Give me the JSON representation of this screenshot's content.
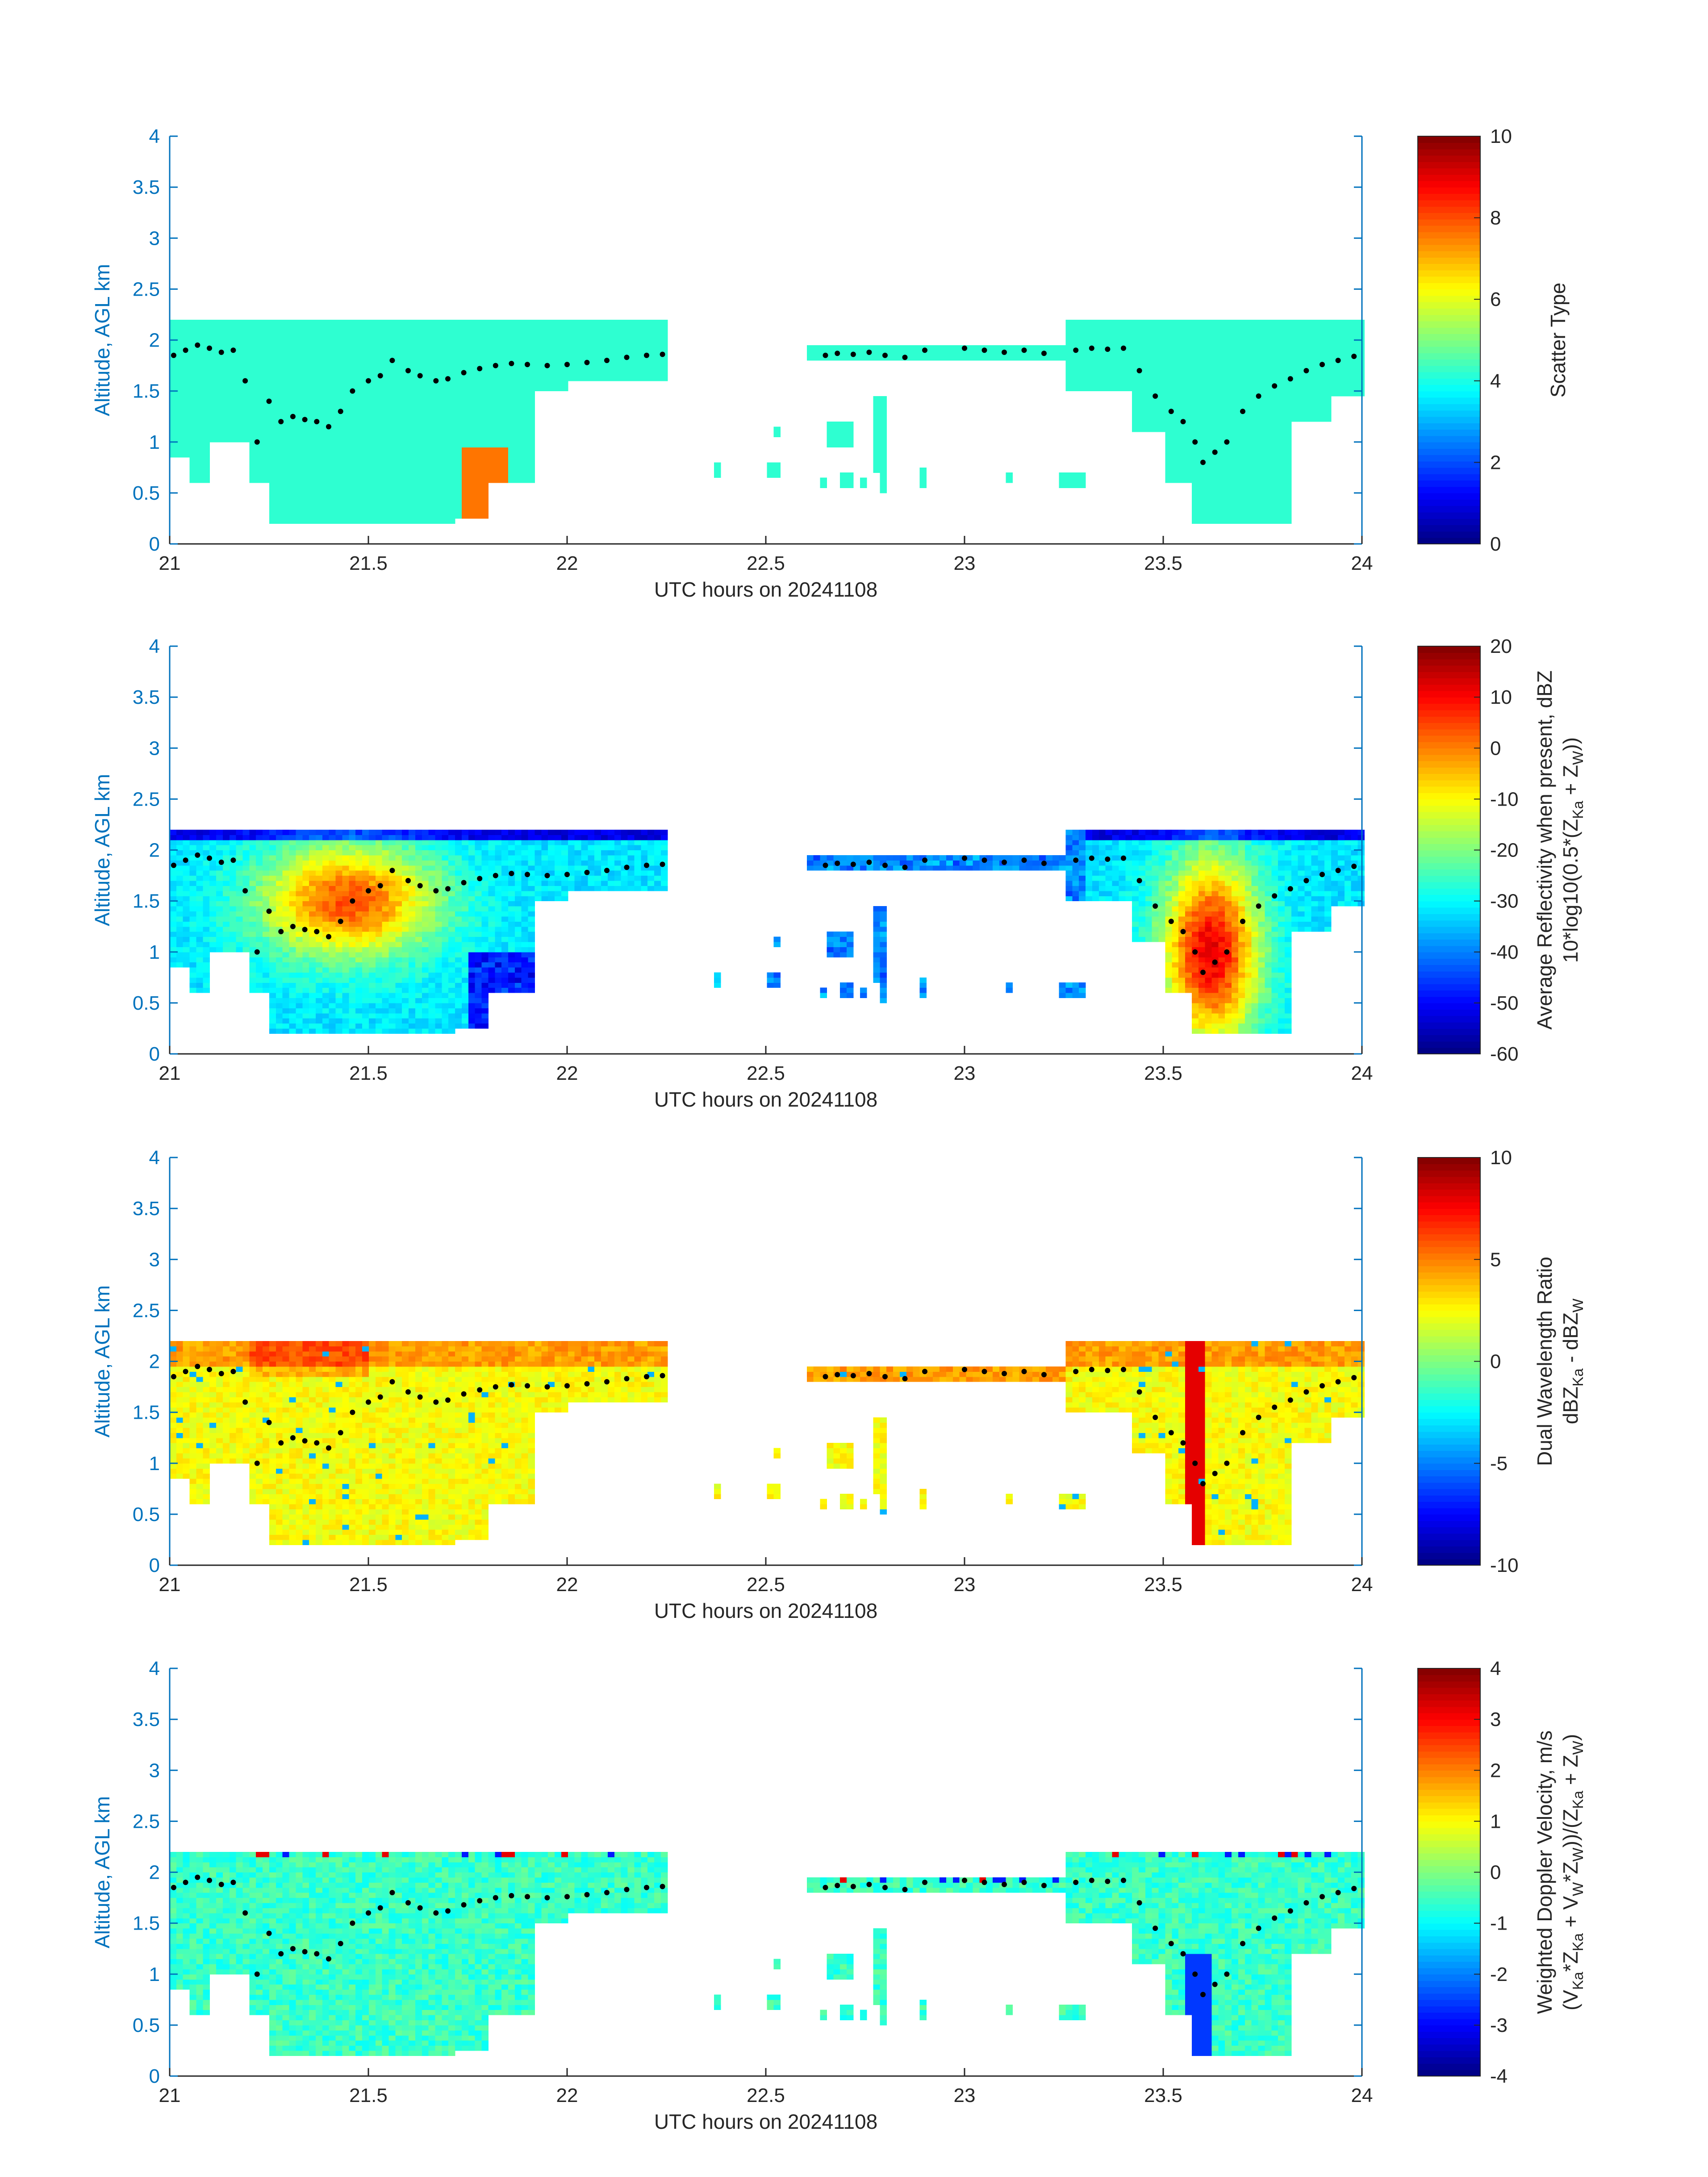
{
  "figure": {
    "x_ticks": [
      "21",
      "21.5",
      "22",
      "22.5",
      "23",
      "23.5",
      "24"
    ],
    "y_ticks": [
      "0",
      "0.5",
      "1",
      "1.5",
      "2",
      "2.5",
      "3",
      "3.5",
      "4"
    ],
    "xlabel": "UTC hours on 20241108",
    "ylabel": "Altitude, AGL km",
    "colors": {
      "axis": "#0072bd",
      "text": "#262626",
      "dot": "#000000"
    }
  },
  "chart_data": [
    {
      "type": "heatmap",
      "xlabel": "UTC hours on 20241108",
      "ylabel": "Altitude, AGL km",
      "xlim": [
        21,
        24
      ],
      "ylim": [
        0,
        4
      ],
      "colorbar": {
        "label_lines": [
          "Scatter Type"
        ],
        "lim": [
          0,
          10
        ],
        "ticks": [
          "0",
          "2",
          "4",
          "6",
          "8",
          "10"
        ]
      },
      "dominant_values": {
        "cloud": 4.2,
        "precip_patches": 7.6
      }
    },
    {
      "type": "heatmap",
      "xlabel": "UTC hours on 20241108",
      "ylabel": "Altitude, AGL km",
      "xlim": [
        21,
        24
      ],
      "ylim": [
        0,
        4
      ],
      "colorbar": {
        "label_lines": [
          "Average Reflectivity when present, dBZ",
          "10*log10(0.5*(Z",
          "Ka",
          " + Z",
          "W",
          "))"
        ],
        "lim": [
          -60,
          20
        ],
        "ticks": [
          "-60",
          "-50",
          "-40",
          "-30",
          "-20",
          "-10",
          "0",
          "10",
          "20"
        ]
      }
    },
    {
      "type": "heatmap",
      "xlabel": "UTC hours on 20241108",
      "ylabel": "Altitude, AGL km",
      "xlim": [
        21,
        24
      ],
      "ylim": [
        0,
        4
      ],
      "colorbar": {
        "label_lines": [
          "Dual Wavelength Ratio",
          "dBZ",
          "Ka",
          " - dBZ",
          "W"
        ],
        "lim": [
          -10,
          10
        ],
        "ticks": [
          "-10",
          "-5",
          "0",
          "5",
          "10"
        ]
      }
    },
    {
      "type": "heatmap",
      "xlabel": "UTC hours on 20241108",
      "ylabel": "Altitude, AGL km",
      "xlim": [
        21,
        24
      ],
      "ylim": [
        0,
        4
      ],
      "colorbar": {
        "label_lines": [
          "Weighted Doppler Velocity, m/s",
          "(V",
          "Ka",
          "*Z",
          "Ka",
          " + V",
          "W",
          "*Z",
          "W",
          "))/(Z",
          "Ka",
          " + Z",
          "W",
          ")"
        ],
        "lim": [
          -4,
          4
        ],
        "ticks": [
          "-4",
          "-3",
          "-2",
          "-1",
          "0",
          "1",
          "2",
          "3",
          "4"
        ]
      }
    }
  ],
  "cloud_top_dots": {
    "x": [
      21.01,
      21.04,
      21.07,
      21.1,
      21.13,
      21.16,
      21.19,
      21.22,
      21.25,
      21.28,
      21.31,
      21.34,
      21.37,
      21.4,
      21.43,
      21.46,
      21.5,
      21.53,
      21.56,
      21.6,
      21.63,
      21.67,
      21.7,
      21.74,
      21.78,
      21.82,
      21.86,
      21.9,
      21.95,
      22.0,
      22.05,
      22.1,
      22.15,
      22.2,
      22.24,
      22.65,
      22.68,
      22.72,
      22.76,
      22.8,
      22.85,
      22.9,
      23.0,
      23.05,
      23.1,
      23.15,
      23.2,
      23.28,
      23.32,
      23.36,
      23.4,
      23.44,
      23.48,
      23.52,
      23.55,
      23.58,
      23.6,
      23.63,
      23.66,
      23.7,
      23.74,
      23.78,
      23.82,
      23.86,
      23.9,
      23.94,
      23.98
    ],
    "y": [
      1.85,
      1.9,
      1.95,
      1.92,
      1.88,
      1.9,
      1.6,
      1.0,
      1.4,
      1.2,
      1.25,
      1.22,
      1.2,
      1.15,
      1.3,
      1.5,
      1.6,
      1.65,
      1.8,
      1.7,
      1.65,
      1.6,
      1.62,
      1.68,
      1.72,
      1.75,
      1.77,
      1.76,
      1.75,
      1.76,
      1.78,
      1.8,
      1.83,
      1.85,
      1.86,
      1.85,
      1.87,
      1.86,
      1.88,
      1.85,
      1.83,
      1.9,
      1.92,
      1.9,
      1.88,
      1.9,
      1.87,
      1.9,
      1.92,
      1.91,
      1.92,
      1.7,
      1.45,
      1.3,
      1.2,
      1.0,
      0.8,
      0.9,
      1.0,
      1.3,
      1.45,
      1.55,
      1.62,
      1.7,
      1.76,
      1.8,
      1.84
    ]
  }
}
